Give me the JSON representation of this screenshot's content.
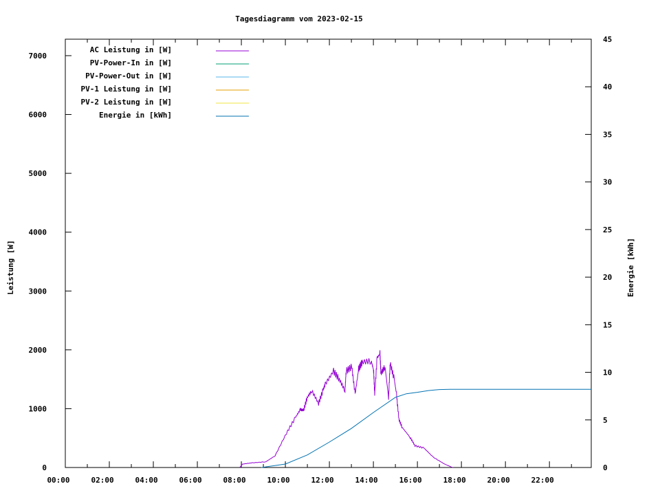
{
  "chart_data": {
    "type": "line",
    "title": "Tagesdiagramm vom 2023-02-15",
    "ylabel": "Leistung [W]",
    "y2label": "Energie [kWh]",
    "xlim_hours": [
      0,
      23.9
    ],
    "ylim": [
      0,
      7280
    ],
    "y2lim": [
      0,
      45
    ],
    "x_ticks": [
      "00:00",
      "02:00",
      "04:00",
      "06:00",
      "08:00",
      "10:00",
      "12:00",
      "14:00",
      "16:00",
      "18:00",
      "20:00",
      "22:00"
    ],
    "y_ticks": [
      0,
      1000,
      2000,
      3000,
      4000,
      5000,
      6000,
      7000
    ],
    "y2_ticks": [
      0,
      5,
      10,
      15,
      20,
      25,
      30,
      35,
      40,
      45
    ],
    "grid": false,
    "legend_position": "top-left",
    "series": [
      {
        "name": "AC Leistung in [W]",
        "color": "#9400d3",
        "axis": "y",
        "x": [
          7.92,
          8.06,
          8.5,
          9.11,
          9.53,
          10.05,
          10.47,
          10.68,
          10.83,
          10.99,
          11.2,
          11.51,
          11.72,
          11.82,
          12.19,
          12.45,
          12.71,
          12.76,
          13.02,
          13.17,
          13.33,
          13.49,
          13.9,
          14.01,
          14.06,
          14.17,
          14.3,
          14.34,
          14.53,
          14.69,
          14.76,
          14.95,
          15.05,
          15.16,
          15.31,
          15.68,
          15.89,
          16.3,
          16.72,
          17.24,
          17.6
        ],
        "y": [
          0,
          58,
          80,
          97,
          198,
          584,
          857,
          985,
          974,
          1188,
          1305,
          1090,
          1324,
          1422,
          1636,
          1500,
          1305,
          1636,
          1714,
          1247,
          1675,
          1792,
          1811,
          1656,
          1250,
          1870,
          1928,
          1600,
          1714,
          1190,
          1773,
          1500,
          1247,
          818,
          682,
          506,
          370,
          331,
          175,
          58,
          0
        ]
      },
      {
        "name": "PV-Power-In in [W]",
        "color": "#009e73",
        "axis": "y",
        "x": [],
        "y": []
      },
      {
        "name": "PV-Power-Out in [W]",
        "color": "#56b4e9",
        "axis": "y",
        "x": [],
        "y": []
      },
      {
        "name": "PV-1 Leistung in [W]",
        "color": "#e69f00",
        "axis": "y",
        "x": [],
        "y": []
      },
      {
        "name": "PV-2 Leistung in [W]",
        "color": "#f0e442",
        "axis": "y",
        "x": [],
        "y": []
      },
      {
        "name": "Energie in [kWh]",
        "color": "#0072b2",
        "axis": "y2",
        "x": [
          8.9,
          10,
          11,
          12,
          13,
          14,
          15,
          15.5,
          16,
          16.5,
          17,
          17.5,
          23.9
        ],
        "y": [
          0,
          0.36,
          1.32,
          2.67,
          4.1,
          5.78,
          7.37,
          7.75,
          7.9,
          8.08,
          8.19,
          8.22,
          8.22
        ]
      }
    ]
  }
}
